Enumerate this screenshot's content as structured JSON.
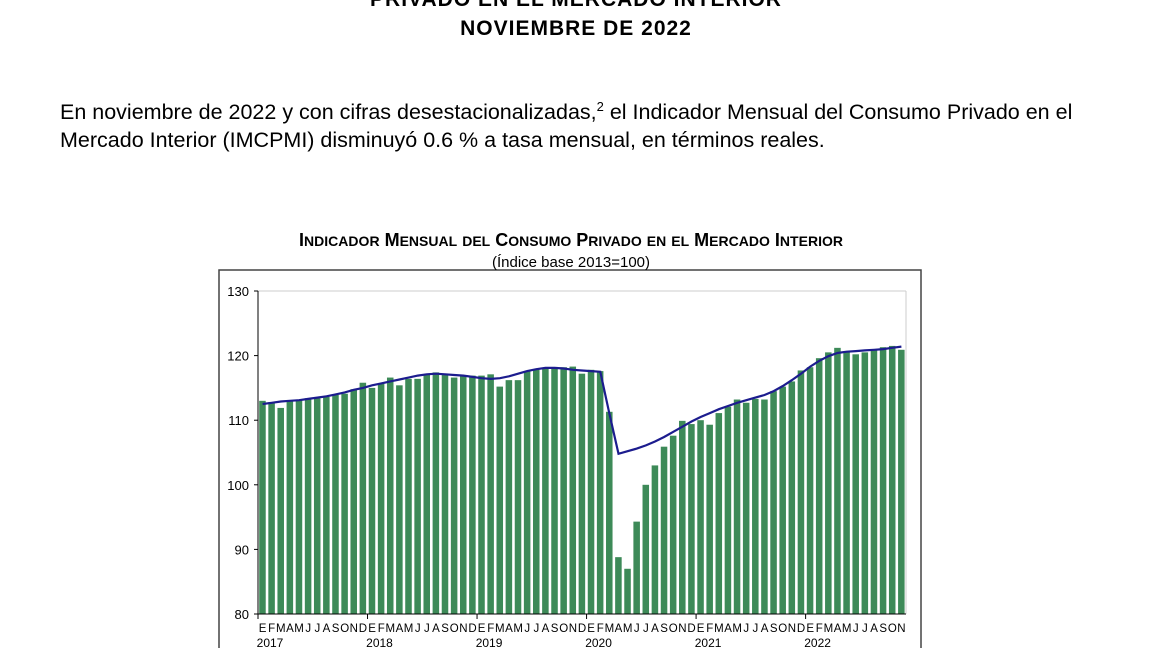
{
  "header": {
    "title_line1": "PRIVADO EN EL MERCADO INTERIOR",
    "title_line2": "NOVIEMBRE DE 2022"
  },
  "body": {
    "paragraph_part1": "En noviembre de 2022 y con cifras desestacionalizadas,",
    "footnote_ref": "2",
    "paragraph_part2": " el Indicador Mensual del Consumo Privado en el Mercado Interior (IMCPMI) disminuyó 0.6 % a tasa mensual, en términos reales."
  },
  "chart_data": {
    "type": "bar",
    "title": "Indicador Mensual del Consumo Privado en el Mercado Interior",
    "subtitle": "(Índice base 2013=100)",
    "ylim": [
      80,
      130
    ],
    "yticks": [
      80,
      90,
      100,
      110,
      120,
      130
    ],
    "grid": false,
    "years": [
      "2017",
      "2018",
      "2019",
      "2020",
      "2021",
      "2022"
    ],
    "month_letters": [
      "E",
      "F",
      "M",
      "A",
      "M",
      "J",
      "J",
      "A",
      "S",
      "O",
      "N",
      "D"
    ],
    "bar_color": "#3d8a58",
    "trend_color": "#1c1c8e",
    "series": [
      {
        "type": "bar",
        "values": [
          113.0,
          112.8,
          111.9,
          113.0,
          113.1,
          113.4,
          113.4,
          113.6,
          113.9,
          114.1,
          114.8,
          115.8,
          115.0,
          115.7,
          116.6,
          115.4,
          116.4,
          116.4,
          117.0,
          117.4,
          117.2,
          116.6,
          116.8,
          116.9,
          116.9,
          117.1,
          115.2,
          116.2,
          116.2,
          117.6,
          117.9,
          118.0,
          118.2,
          118.2,
          118.3,
          117.2,
          117.8,
          117.6,
          111.3,
          88.8,
          87.0,
          94.3,
          100.0,
          103.0,
          105.9,
          107.6,
          109.9,
          109.4,
          110.0,
          109.3,
          111.1,
          112.1,
          113.2,
          112.7,
          113.3,
          113.2,
          114.5,
          115.2,
          116.0,
          117.7,
          118.2,
          119.6,
          120.5,
          121.2,
          120.7,
          120.2,
          120.5,
          120.9,
          121.3,
          121.5,
          120.9
        ]
      },
      {
        "type": "line",
        "values": [
          112.5,
          112.7,
          112.9,
          113.0,
          113.1,
          113.3,
          113.5,
          113.7,
          114.0,
          114.3,
          114.7,
          115.0,
          115.4,
          115.7,
          116.0,
          116.3,
          116.6,
          116.9,
          117.1,
          117.2,
          117.1,
          117.0,
          116.9,
          116.7,
          116.5,
          116.4,
          116.5,
          116.8,
          117.2,
          117.6,
          117.9,
          118.1,
          118.1,
          118.0,
          117.8,
          117.7,
          117.6,
          117.5,
          111.0,
          104.8,
          105.2,
          105.6,
          106.1,
          106.7,
          107.4,
          108.2,
          109.0,
          109.8,
          110.5,
          111.1,
          111.7,
          112.2,
          112.7,
          113.1,
          113.5,
          113.9,
          114.5,
          115.3,
          116.2,
          117.2,
          118.3,
          119.2,
          119.9,
          120.4,
          120.6,
          120.7,
          120.8,
          120.9,
          121.0,
          121.2,
          121.4
        ]
      }
    ]
  }
}
